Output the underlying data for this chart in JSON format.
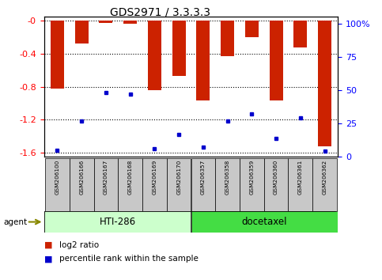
{
  "title": "GDS2971 / 3.3.3.3",
  "categories": [
    "GSM206100",
    "GSM206166",
    "GSM206167",
    "GSM206168",
    "GSM206169",
    "GSM206170",
    "GSM206357",
    "GSM206358",
    "GSM206359",
    "GSM206360",
    "GSM206361",
    "GSM206362"
  ],
  "log2_values": [
    -0.82,
    -0.27,
    -0.02,
    -0.03,
    -0.84,
    -0.67,
    -0.97,
    -0.43,
    -0.2,
    -0.97,
    -0.32,
    -1.52
  ],
  "percentile_values": [
    5,
    27,
    48,
    47,
    6,
    17,
    7,
    27,
    32,
    14,
    29,
    4
  ],
  "bar_color": "#cc2200",
  "dot_color": "#0000cc",
  "ylim_left": [
    -1.65,
    0.05
  ],
  "ylim_right": [
    0,
    105
  ],
  "yticks_left": [
    0,
    -0.4,
    -0.8,
    -1.2,
    -1.6
  ],
  "yticks_right": [
    0,
    25,
    50,
    75,
    100
  ],
  "ylabel_left_labels": [
    "-0",
    "-0.4",
    "-0.8",
    "-1.2",
    "-1.6"
  ],
  "ylabel_right_labels": [
    "0",
    "25",
    "50",
    "75",
    "100%"
  ],
  "group1_label": "HTI-286",
  "group2_label": "docetaxel",
  "group1_indices": [
    0,
    1,
    2,
    3,
    4,
    5
  ],
  "group2_indices": [
    6,
    7,
    8,
    9,
    10,
    11
  ],
  "agent_label": "agent",
  "legend_red": "log2 ratio",
  "legend_blue": "percentile rank within the sample",
  "bar_width": 0.55,
  "group1_color_light": "#ccffcc",
  "group2_color_bright": "#44dd44",
  "xtick_bg": "#c8c8c8"
}
